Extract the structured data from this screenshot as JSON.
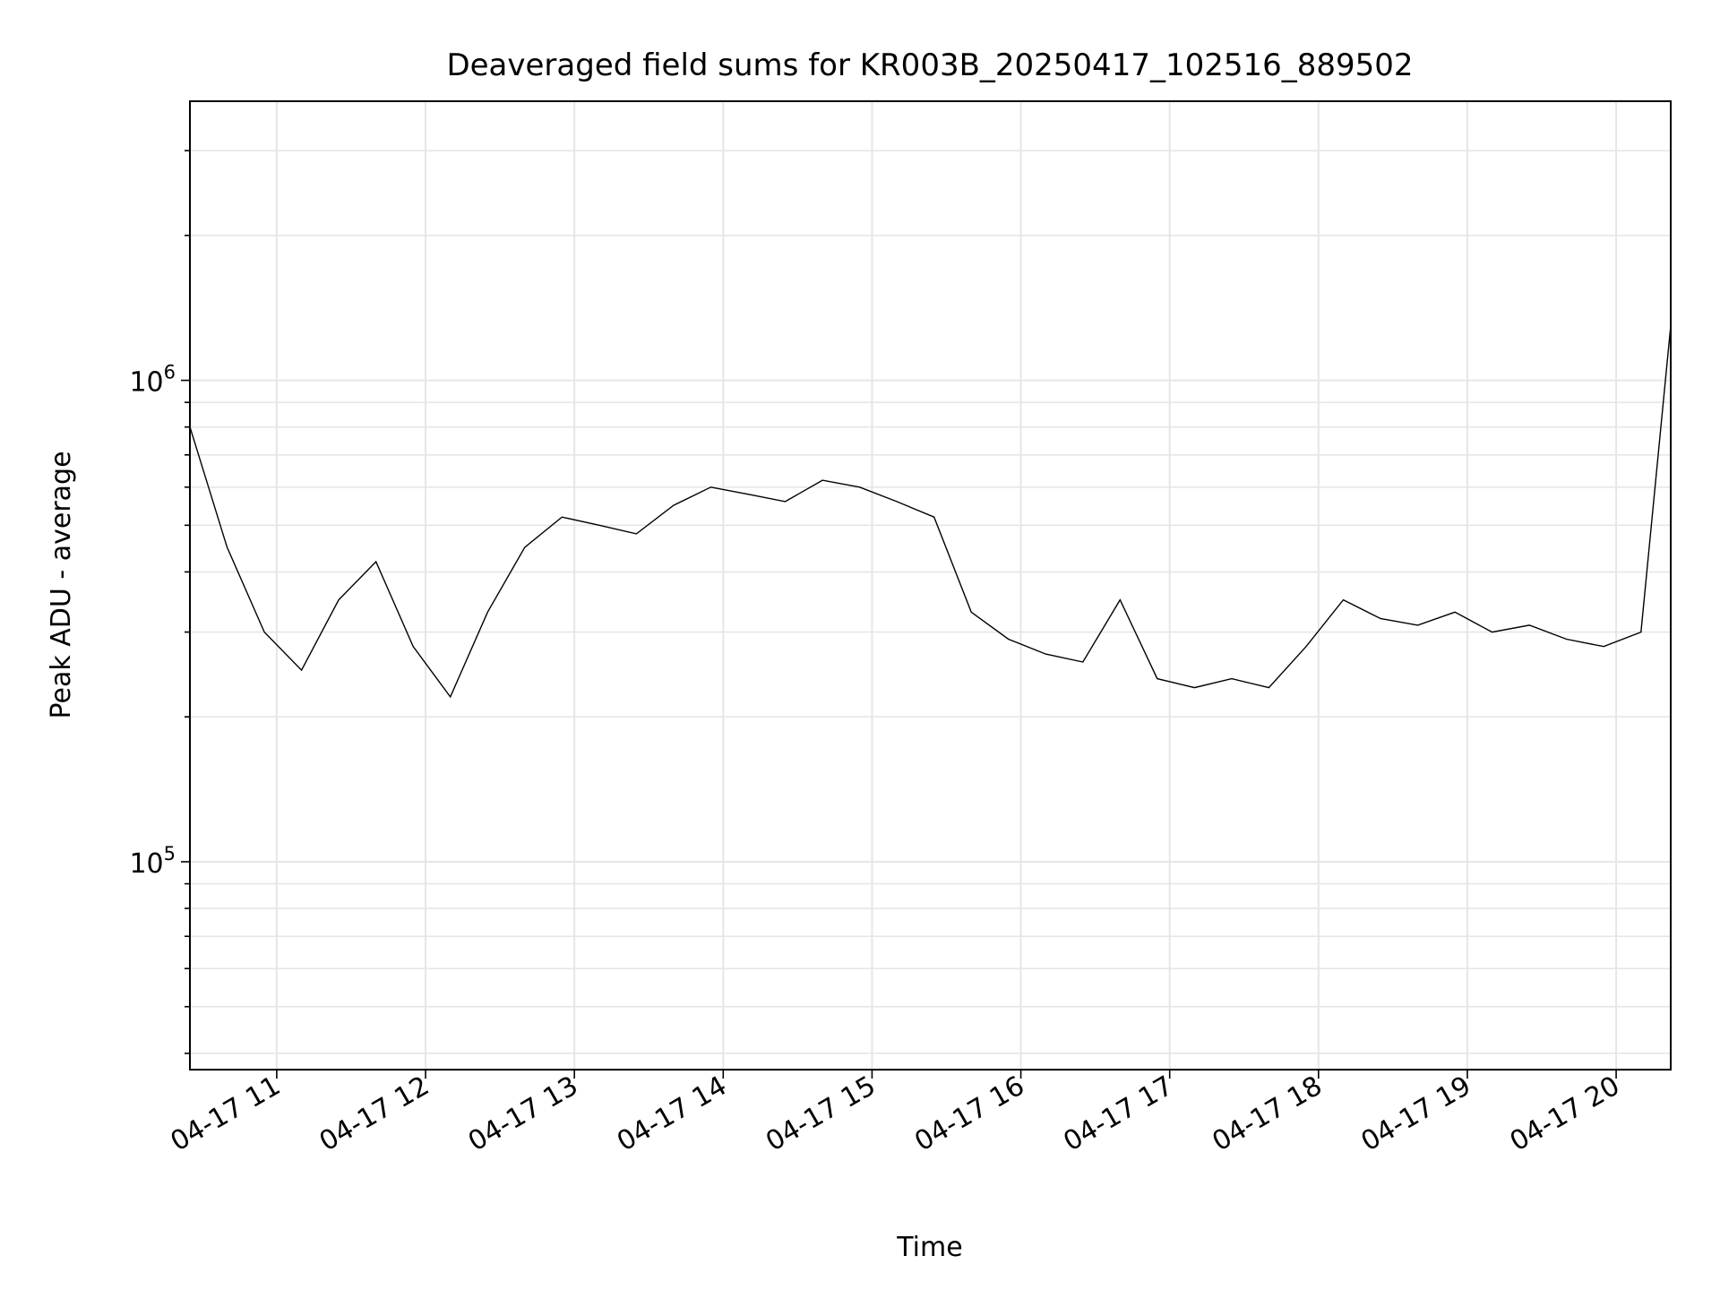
{
  "chart_data": {
    "type": "line",
    "title": "Deaveraged field sums for KR003B_20250417_102516_889502",
    "xlabel": "Time",
    "ylabel": "Peak ADU - average",
    "yscale": "log",
    "ylim": [
      37000,
      3800000
    ],
    "xlim": [
      "04-17 10:25",
      "04-17 20:22"
    ],
    "x_ticks": [
      "04-17 11",
      "04-17 12",
      "04-17 13",
      "04-17 14",
      "04-17 15",
      "04-17 16",
      "04-17 17",
      "04-17 18",
      "04-17 19",
      "04-17 20"
    ],
    "y_ticks": [
      {
        "value": 100000,
        "base": "10",
        "exp": "5"
      },
      {
        "value": 1000000,
        "base": "10",
        "exp": "6"
      }
    ],
    "grid": true,
    "line_color": "#000000",
    "series": [
      {
        "x": [
          "04-17 10:25",
          "04-17 10:40",
          "04-17 10:55",
          "04-17 11:10",
          "04-17 11:25",
          "04-17 11:40",
          "04-17 11:55",
          "04-17 12:10",
          "04-17 12:25",
          "04-17 12:40",
          "04-17 12:55",
          "04-17 13:10",
          "04-17 13:25",
          "04-17 13:40",
          "04-17 13:55",
          "04-17 14:10",
          "04-17 14:25",
          "04-17 14:40",
          "04-17 14:55",
          "04-17 15:10",
          "04-17 15:25",
          "04-17 15:40",
          "04-17 15:55",
          "04-17 16:10",
          "04-17 16:25",
          "04-17 16:40",
          "04-17 16:55",
          "04-17 17:10",
          "04-17 17:25",
          "04-17 17:40",
          "04-17 17:55",
          "04-17 18:10",
          "04-17 18:25",
          "04-17 18:40",
          "04-17 18:55",
          "04-17 19:10",
          "04-17 19:25",
          "04-17 19:40",
          "04-17 19:55",
          "04-17 20:10",
          "04-17 20:22"
        ],
        "values": [
          800000,
          450000,
          300000,
          250000,
          350000,
          420000,
          280000,
          220000,
          330000,
          450000,
          520000,
          500000,
          480000,
          550000,
          600000,
          580000,
          560000,
          620000,
          600000,
          560000,
          520000,
          330000,
          290000,
          270000,
          260000,
          350000,
          240000,
          230000,
          240000,
          230000,
          280000,
          350000,
          320000,
          310000,
          330000,
          300000,
          310000,
          290000,
          280000,
          300000,
          1300000
        ]
      }
    ]
  }
}
